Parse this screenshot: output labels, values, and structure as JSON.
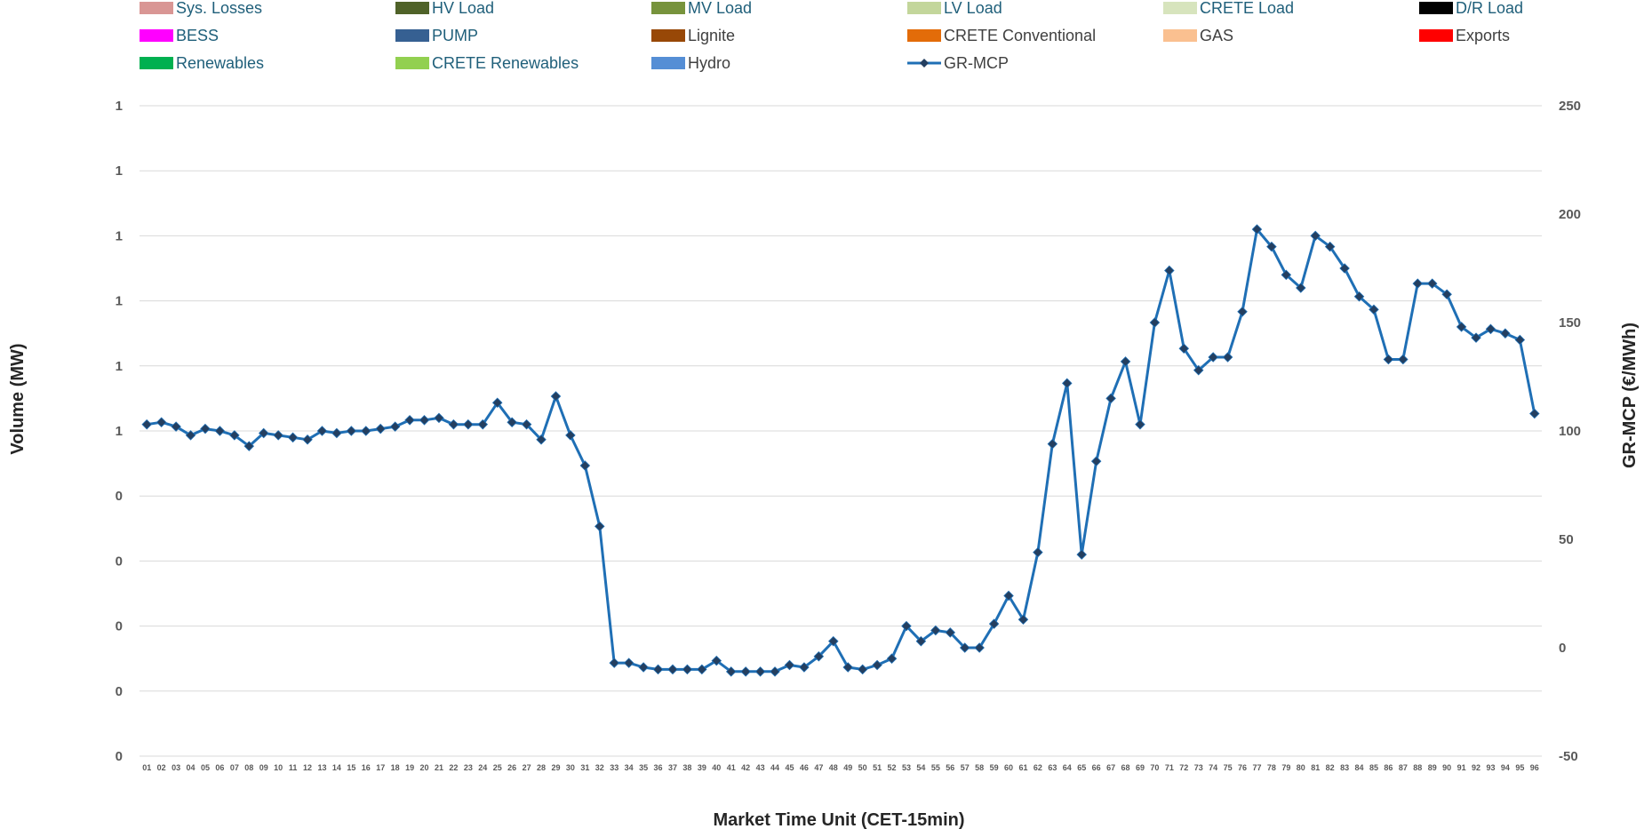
{
  "chart_data": {
    "type": "line",
    "xlabel": "Market Time Unit (CET-15min)",
    "ylabel_left": "Volume (MW)",
    "ylabel_right": "GR-MCP (€/MWh)",
    "left_axis_ticks": [
      "0",
      "0",
      "0",
      "0",
      "0",
      "1",
      "1",
      "1",
      "1",
      "1",
      "1"
    ],
    "right_axis_ticks": [
      "-50",
      "0",
      "50",
      "100",
      "150",
      "200",
      "250"
    ],
    "ylim_right": [
      -50,
      250
    ],
    "grid": true,
    "legend_position": "top",
    "categories": [
      "01",
      "02",
      "03",
      "04",
      "05",
      "06",
      "07",
      "08",
      "09",
      "10",
      "11",
      "12",
      "13",
      "14",
      "15",
      "16",
      "17",
      "18",
      "19",
      "20",
      "21",
      "22",
      "23",
      "24",
      "25",
      "26",
      "27",
      "28",
      "29",
      "30",
      "31",
      "32",
      "33",
      "34",
      "35",
      "36",
      "37",
      "38",
      "39",
      "40",
      "41",
      "42",
      "43",
      "44",
      "45",
      "46",
      "47",
      "48",
      "49",
      "50",
      "51",
      "52",
      "53",
      "54",
      "55",
      "56",
      "57",
      "58",
      "59",
      "60",
      "61",
      "62",
      "63",
      "64",
      "65",
      "66",
      "67",
      "68",
      "69",
      "70",
      "71",
      "72",
      "73",
      "74",
      "75",
      "76",
      "77",
      "78",
      "79",
      "80",
      "81",
      "82",
      "83",
      "84",
      "85",
      "86",
      "87",
      "88",
      "89",
      "90",
      "91",
      "92",
      "93",
      "94",
      "95",
      "96"
    ],
    "legend": [
      {
        "name": "Sys. Losses",
        "color": "#d99694",
        "kind": "box"
      },
      {
        "name": "HV Load",
        "color": "#4f6228",
        "kind": "box"
      },
      {
        "name": "MV Load",
        "color": "#77933c",
        "kind": "box"
      },
      {
        "name": "LV Load",
        "color": "#c3d69b",
        "kind": "box"
      },
      {
        "name": "CRETE Load",
        "color": "#d7e4bd",
        "kind": "box"
      },
      {
        "name": "D/R Load",
        "color": "#000000",
        "kind": "box"
      },
      {
        "name": "BESS",
        "color": "#ff00ff",
        "kind": "box"
      },
      {
        "name": "PUMP",
        "color": "#366092",
        "kind": "box"
      },
      {
        "name": "Lignite",
        "color": "#984807",
        "kind": "box"
      },
      {
        "name": "CRETE Conventional",
        "color": "#e36c09",
        "kind": "box"
      },
      {
        "name": "GAS",
        "color": "#fac090",
        "kind": "box"
      },
      {
        "name": "Exports",
        "color": "#ff0000",
        "kind": "box"
      },
      {
        "name": "Renewables",
        "color": "#00b050",
        "kind": "box"
      },
      {
        "name": "CRETE Renewables",
        "color": "#92d050",
        "kind": "box"
      },
      {
        "name": "Hydro",
        "color": "#558ed5",
        "kind": "box"
      },
      {
        "name": "GR-MCP",
        "color": "#1f6fb5",
        "kind": "line"
      }
    ],
    "series": [
      {
        "name": "GR-MCP",
        "axis": "right",
        "color": "#1f6fb5",
        "marker_color": "#243f60",
        "values": [
          103,
          104,
          102,
          98,
          101,
          100,
          98,
          93,
          99,
          98,
          97,
          96,
          100,
          99,
          100,
          100,
          101,
          102,
          105,
          105,
          106,
          103,
          103,
          103,
          113,
          104,
          103,
          96,
          116,
          98,
          84,
          56,
          -7,
          -7,
          -9,
          -10,
          -10,
          -10,
          -10,
          -6,
          -11,
          -11,
          -11,
          -11,
          -8,
          -9,
          -4,
          3,
          -9,
          -10,
          -8,
          -5,
          10,
          3,
          8,
          7,
          0,
          0,
          11,
          24,
          13,
          44,
          94,
          122,
          43,
          86,
          115,
          132,
          103,
          150,
          174,
          138,
          128,
          134,
          134,
          155,
          193,
          185,
          172,
          166,
          190,
          185,
          175,
          162,
          156,
          133,
          133,
          168,
          168,
          163,
          148,
          143,
          147,
          145,
          142,
          108
        ]
      }
    ]
  }
}
